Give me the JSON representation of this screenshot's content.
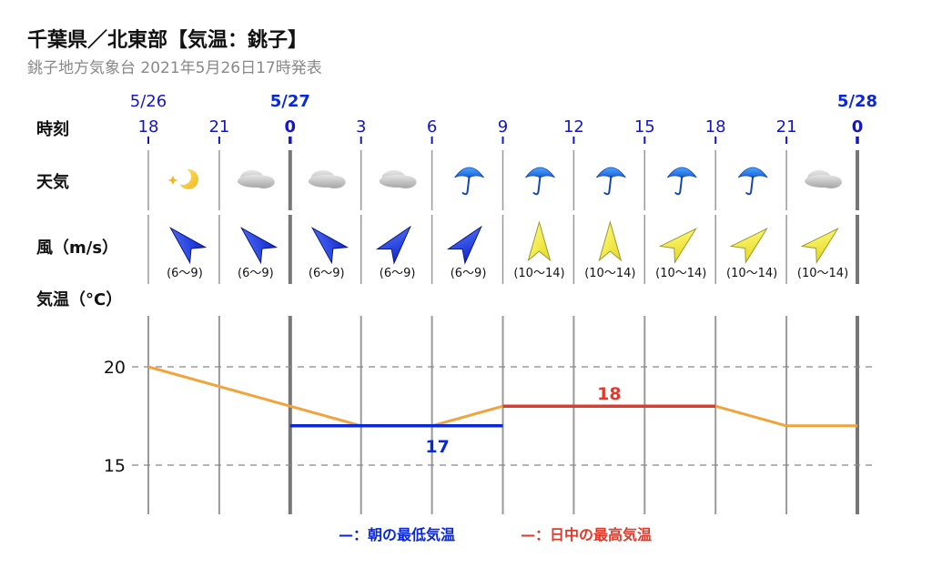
{
  "header": {
    "title": "千葉県／北東部【気温：銚子】",
    "subtitle": "銚子地方気象台 2021年5月26日17時発表"
  },
  "row_labels": {
    "time": "時刻",
    "weather": "天気",
    "wind": "風（m/s）",
    "temp": "気温（°C）"
  },
  "dates": [
    {
      "label": "5/26",
      "index": 0,
      "color": "#1515c8"
    },
    {
      "label": "5/27",
      "index": 2,
      "color": "#0a28d8"
    },
    {
      "label": "5/28",
      "index": 10,
      "color": "#0a28d8"
    }
  ],
  "hours": [
    "18",
    "21",
    "0",
    "3",
    "6",
    "9",
    "12",
    "15",
    "18",
    "21",
    "0"
  ],
  "day_boundaries": [
    2,
    10
  ],
  "weather": [
    "moon-star-icon",
    "cloud-icon",
    "cloud-icon",
    "cloud-icon",
    "umbrella-icon",
    "umbrella-icon",
    "umbrella-icon",
    "umbrella-icon",
    "umbrella-icon",
    "cloud-icon"
  ],
  "wind": [
    {
      "dir": "northwest",
      "label": "(6〜9)",
      "color": "#1e3ee6"
    },
    {
      "dir": "northwest",
      "label": "(6〜9)",
      "color": "#1e3ee6"
    },
    {
      "dir": "northwest",
      "label": "(6〜9)",
      "color": "#1e3ee6"
    },
    {
      "dir": "northeast",
      "label": "(6〜9)",
      "color": "#1e3ee6"
    },
    {
      "dir": "northeast",
      "label": "(6〜9)",
      "color": "#1e3ee6"
    },
    {
      "dir": "north",
      "label": "(10〜14)",
      "color": "#f5f03a"
    },
    {
      "dir": "north",
      "label": "(10〜14)",
      "color": "#f5f03a"
    },
    {
      "dir": "northeast",
      "label": "(10〜14)",
      "color": "#f5f03a"
    },
    {
      "dir": "northeast",
      "label": "(10〜14)",
      "color": "#f5f03a"
    },
    {
      "dir": "northeast",
      "label": "(10〜14)",
      "color": "#f5f03a"
    }
  ],
  "legend": {
    "low": "—：朝の最低気温",
    "high": "—：日中の最高気温"
  },
  "colors": {
    "line": "#f0a43c",
    "low": "#0a28d8",
    "high": "#e03a2c",
    "grid": "#888888"
  },
  "chart_data": {
    "type": "line",
    "x": [
      "18",
      "21",
      "0",
      "3",
      "6",
      "9",
      "12",
      "15",
      "18",
      "21",
      "0"
    ],
    "series": [
      {
        "values": [
          20,
          19,
          18,
          17,
          17,
          18,
          18,
          18,
          18,
          17,
          17
        ]
      }
    ],
    "yticks": [
      15,
      20
    ],
    "ylim": [
      12.5,
      22.5
    ],
    "min_temp": {
      "value": 17,
      "label": "17",
      "from": 2,
      "to": 5
    },
    "max_temp": {
      "value": 18,
      "label": "18",
      "from": 5,
      "to": 8
    }
  }
}
